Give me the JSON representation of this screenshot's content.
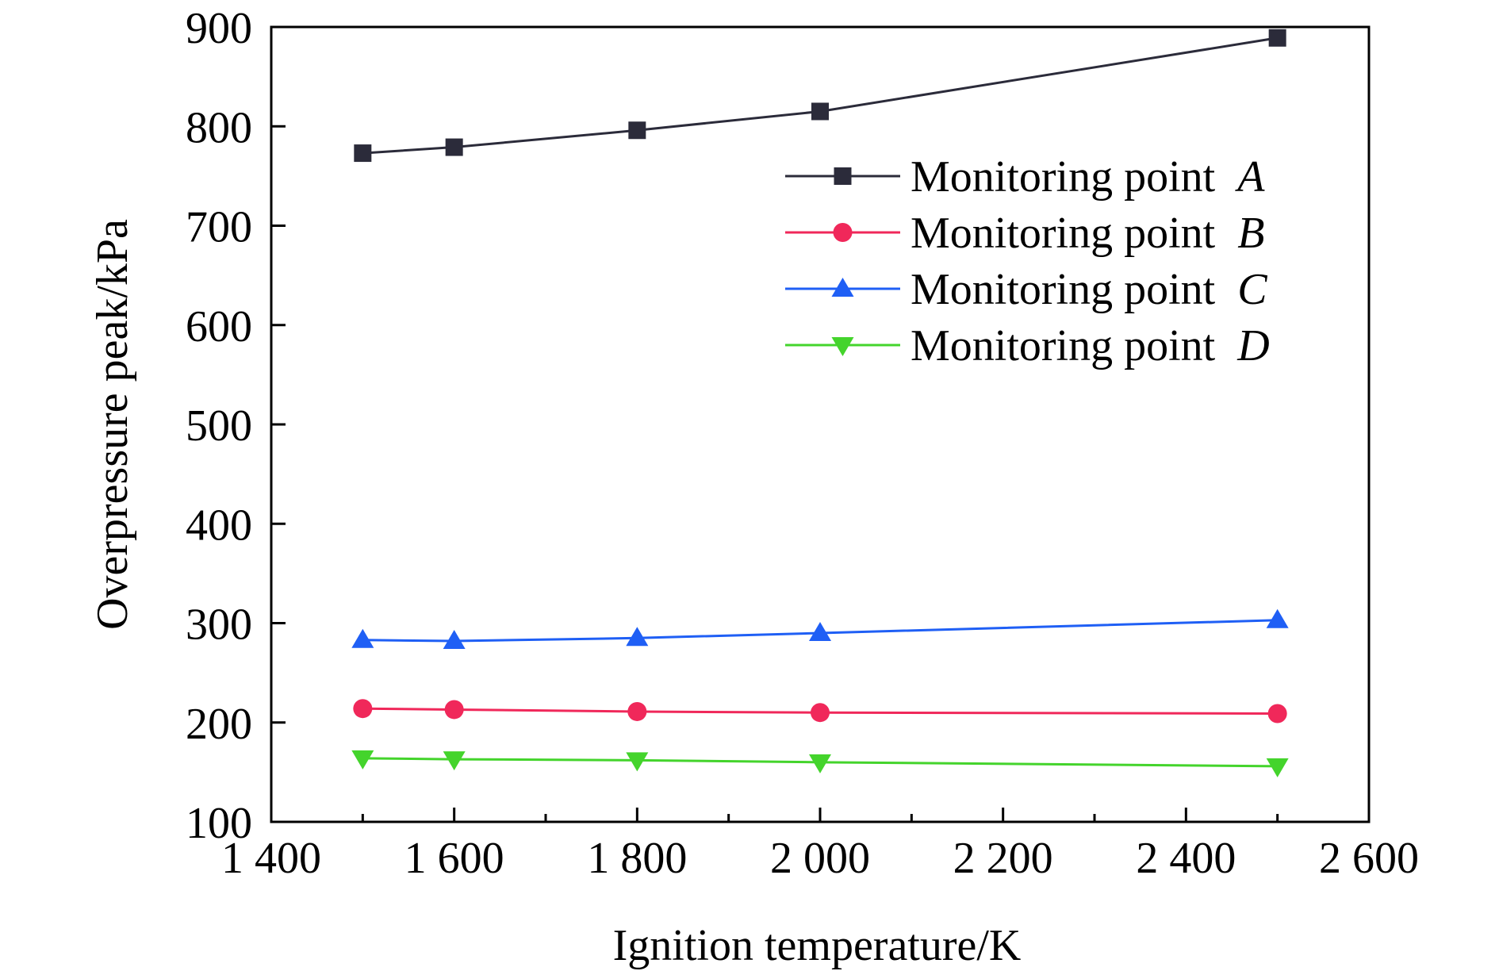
{
  "chart_data": {
    "type": "line",
    "title": "",
    "xlabel": "Ignition temperature/K",
    "ylabel": "Overpressure peak/kPa",
    "xlim": [
      1400,
      2600
    ],
    "ylim": [
      100,
      900
    ],
    "x_ticks": [
      1400,
      1600,
      1800,
      2000,
      2200,
      2400,
      2600
    ],
    "x_tick_labels": [
      "1 400",
      "1 600",
      "1 800",
      "2 000",
      "2 200",
      "2 400",
      "2 600"
    ],
    "y_ticks": [
      100,
      200,
      300,
      400,
      500,
      600,
      700,
      800,
      900
    ],
    "y_tick_labels": [
      "100",
      "200",
      "300",
      "400",
      "500",
      "600",
      "700",
      "800",
      "900"
    ],
    "grid": false,
    "legend_position": "top-right",
    "x": [
      1500,
      1600,
      1800,
      2000,
      2500
    ],
    "series": [
      {
        "name_prefix": "Monitoring point",
        "name_italic": "A",
        "color": "#2b2b3a",
        "marker": "square",
        "values": [
          773,
          779,
          796,
          815,
          889
        ]
      },
      {
        "name_prefix": "Monitoring point",
        "name_italic": "B",
        "color": "#f0285a",
        "marker": "circle",
        "values": [
          214,
          213,
          211,
          210,
          209
        ]
      },
      {
        "name_prefix": "Monitoring point",
        "name_italic": "C",
        "color": "#1f5ff5",
        "marker": "triangle-up",
        "values": [
          283,
          282,
          285,
          290,
          303
        ]
      },
      {
        "name_prefix": "Monitoring point",
        "name_italic": "D",
        "color": "#44d42c",
        "marker": "triangle-down",
        "values": [
          164,
          163,
          162,
          160,
          156
        ]
      }
    ]
  }
}
